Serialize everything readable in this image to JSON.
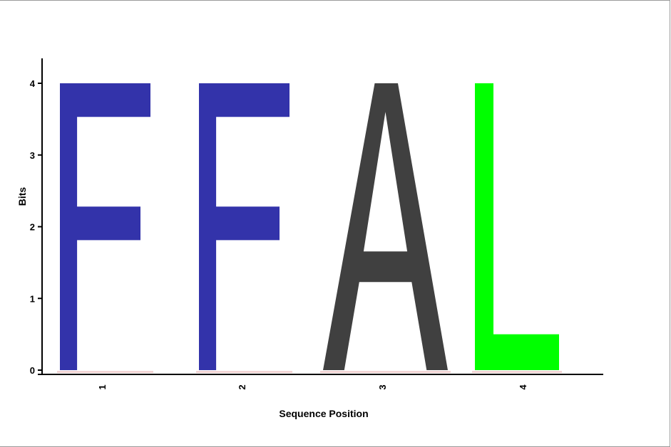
{
  "chart_data": {
    "type": "sequence-logo",
    "title": "",
    "xlabel": "Sequence Position",
    "ylabel": "Bits",
    "ylim": [
      0,
      4.1
    ],
    "y_ticks": [
      "0",
      "1",
      "2",
      "3",
      "4"
    ],
    "positions": [
      {
        "label": "1",
        "letter": "F",
        "bits": 4.0,
        "color": "#3333aa"
      },
      {
        "label": "2",
        "letter": "F",
        "bits": 4.0,
        "color": "#3333aa"
      },
      {
        "label": "3",
        "letter": "A",
        "bits": 4.0,
        "color": "#404040"
      },
      {
        "label": "4",
        "letter": "L",
        "bits": 4.0,
        "color": "#00ff00"
      }
    ]
  }
}
